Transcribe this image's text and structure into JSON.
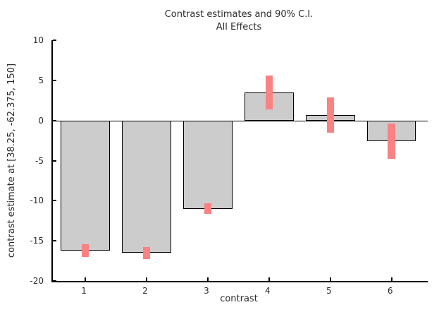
{
  "title": {
    "line1": "Contrast estimates and 90% C.I.",
    "line2": "All Effects"
  },
  "chart_data": {
    "type": "bar",
    "title": "Contrast estimates and 90% C.I.",
    "subtitle": "All Effects",
    "xlabel": "contrast",
    "ylabel": "contrast estimate at [38.25, -62.375, 150]",
    "ci_level": "90%",
    "categories": [
      "1",
      "2",
      "3",
      "4",
      "5",
      "6"
    ],
    "values": [
      -16.2,
      -16.5,
      -11.0,
      3.5,
      0.7,
      -2.6
    ],
    "ci_half_width": [
      0.8,
      0.75,
      0.65,
      2.1,
      2.2,
      2.2
    ],
    "bar_width": 0.8,
    "error_bar_width": 0.12,
    "xlim": [
      0.47,
      6.59
    ],
    "ylim": [
      -20,
      10
    ],
    "xticks": [
      1,
      2,
      3,
      4,
      5,
      6
    ],
    "xtick_labels": [
      "1",
      "2",
      "3",
      "4",
      "5",
      "6"
    ],
    "ytick_values": [
      10,
      5,
      0,
      -5,
      -10,
      -15,
      -20
    ],
    "ytick_labels": [
      "10",
      "5",
      "0",
      "-5",
      "-10",
      "-15",
      "-20"
    ],
    "grid": false,
    "legend": null,
    "colors": {
      "bar_fill": "#cccccc",
      "bar_edge": "#000000",
      "error_bar": "#fa8282",
      "axis": "#000000",
      "background": "#ffffff",
      "text": "#2b2b2b"
    }
  }
}
